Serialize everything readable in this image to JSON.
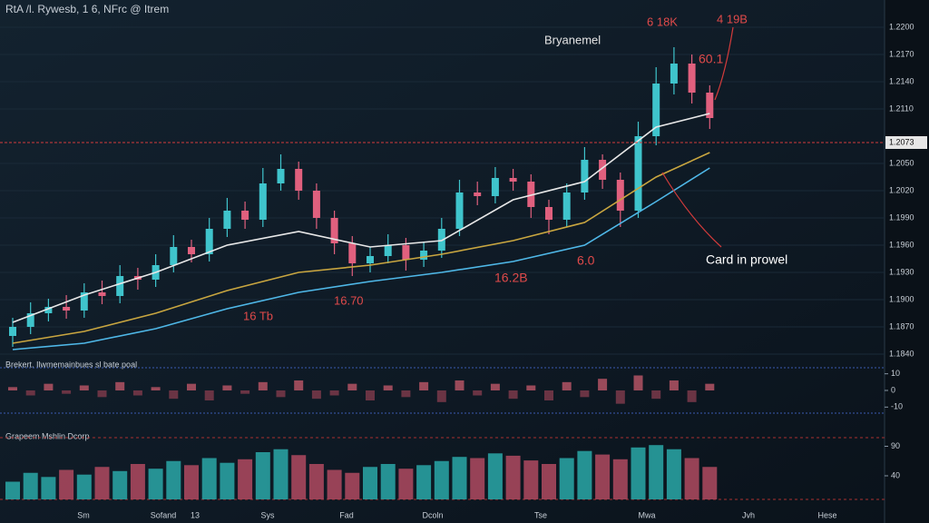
{
  "chart_data": {
    "type": "candlestick",
    "title": "RtA /l. Rywesb, 1 6, NFrc @ Itrem",
    "open": [
      1.186,
      1.187,
      1.1885,
      1.1892,
      1.1888,
      1.1908,
      1.1904,
      1.1926,
      1.1922,
      1.1938,
      1.1958,
      1.195,
      1.1978,
      1.1998,
      1.1988,
      1.2028,
      1.2044,
      1.202,
      1.199,
      1.1962,
      1.194,
      1.1948,
      1.196,
      1.1944,
      1.1954,
      1.1978,
      1.2018,
      1.2014,
      1.2034,
      1.203,
      1.2002,
      1.1988,
      1.2018,
      1.2054,
      1.2032,
      1.1998,
      1.208,
      1.2138,
      1.216,
      1.2128
    ],
    "high": [
      1.188,
      1.1897,
      1.1901,
      1.1905,
      1.1918,
      1.1921,
      1.1938,
      1.1935,
      1.195,
      1.1971,
      1.1966,
      1.199,
      1.2012,
      1.2008,
      1.2045,
      1.206,
      1.2052,
      1.2028,
      1.1998,
      1.197,
      1.1958,
      1.1972,
      1.1968,
      1.1964,
      1.199,
      1.2032,
      1.203,
      1.2046,
      1.2044,
      1.2038,
      1.201,
      1.2028,
      1.2068,
      1.206,
      1.204,
      1.2096,
      1.2156,
      1.2178,
      1.217,
      1.2136
    ],
    "low": [
      1.1848,
      1.1862,
      1.1876,
      1.1879,
      1.188,
      1.1895,
      1.1896,
      1.1911,
      1.1914,
      1.193,
      1.1941,
      1.1942,
      1.1969,
      1.1978,
      1.198,
      1.202,
      1.201,
      1.1978,
      1.195,
      1.1926,
      1.193,
      1.194,
      1.1932,
      1.1936,
      1.1946,
      1.197,
      1.2004,
      1.2006,
      1.202,
      1.199,
      1.1972,
      1.198,
      1.201,
      1.2022,
      1.198,
      1.199,
      1.207,
      1.2126,
      1.2116,
      1.2088
    ],
    "close": [
      1.187,
      1.1885,
      1.1892,
      1.1888,
      1.1908,
      1.1904,
      1.1926,
      1.1922,
      1.1938,
      1.1958,
      1.195,
      1.1978,
      1.1998,
      1.1988,
      1.2028,
      1.2044,
      1.202,
      1.199,
      1.1962,
      1.194,
      1.1948,
      1.196,
      1.1944,
      1.1954,
      1.1978,
      1.2018,
      1.2014,
      1.2034,
      1.203,
      1.2002,
      1.1988,
      1.2018,
      1.2054,
      1.2032,
      1.1998,
      1.208,
      1.2138,
      1.216,
      1.2128,
      1.21
    ],
    "up_color": "#3fc4cc",
    "down_color": "#e0607e",
    "overlays": [
      {
        "color": "#e8e8e8",
        "x": [
          0,
          4,
          8,
          12,
          16,
          20,
          24,
          28,
          32,
          36,
          39
        ],
        "values": [
          1.1875,
          1.1905,
          1.193,
          1.196,
          1.1975,
          1.1958,
          1.1965,
          1.201,
          1.203,
          1.209,
          1.2105
        ]
      },
      {
        "color": "#c9a640",
        "x": [
          0,
          4,
          8,
          12,
          16,
          20,
          24,
          28,
          32,
          36,
          39
        ],
        "values": [
          1.1852,
          1.1865,
          1.1885,
          1.191,
          1.193,
          1.1938,
          1.195,
          1.1965,
          1.1985,
          1.2035,
          1.2062
        ]
      },
      {
        "color": "#4fb8e8",
        "x": [
          0,
          4,
          8,
          12,
          16,
          20,
          24,
          28,
          32,
          36,
          39
        ],
        "values": [
          1.1845,
          1.1852,
          1.1868,
          1.189,
          1.1908,
          1.192,
          1.193,
          1.1942,
          1.196,
          1.2008,
          1.2045
        ]
      }
    ],
    "ylim": [
      1.183,
      1.221
    ],
    "yticks": [
      {
        "value": 1.22,
        "label": "1.2200"
      },
      {
        "value": 1.217,
        "label": "1.2170"
      },
      {
        "value": 1.214,
        "label": "1.2140"
      },
      {
        "value": 1.211,
        "label": "1.2110"
      },
      {
        "value": 1.205,
        "label": "1.2050"
      },
      {
        "value": 1.202,
        "label": "1.2020"
      },
      {
        "value": 1.199,
        "label": "1.1990"
      },
      {
        "value": 1.196,
        "label": "1.1960"
      },
      {
        "value": 1.193,
        "label": "1.1930"
      },
      {
        "value": 1.19,
        "label": "1.1900"
      },
      {
        "value": 1.187,
        "label": "1.1870"
      },
      {
        "value": 1.184,
        "label": "1.1840"
      }
    ],
    "grid": true,
    "price_line": {
      "value": 1.2073,
      "label": "1.2073",
      "color": "#d23b3b"
    },
    "annotations": [
      "Bryanemel",
      "6 18K",
      "4 19B",
      "60.1",
      "Card in prowel",
      "16.2B",
      "6.0",
      "16 Tb",
      "16.70"
    ],
    "oscillator": {
      "title": "Brekert. Ilwmemainbues sl bate poal",
      "ylim": [
        -12,
        12
      ],
      "yticks": [
        10,
        0,
        -10
      ],
      "values": [
        2,
        -3,
        4,
        -2,
        3,
        -4,
        5,
        -3,
        2,
        -5,
        4,
        -6,
        3,
        -2,
        5,
        -4,
        6,
        -5,
        -3,
        4,
        -6,
        3,
        -4,
        5,
        -7,
        6,
        -3,
        4,
        -5,
        3,
        -6,
        5,
        -4,
        7,
        -8,
        9,
        -5,
        6,
        -7,
        4
      ]
    },
    "volume": {
      "title": "Grapeem Mshlin Dcorp",
      "ylim": [
        0,
        100
      ],
      "yticks": [
        90,
        40
      ],
      "values": [
        30,
        45,
        38,
        50,
        42,
        55,
        48,
        60,
        52,
        65,
        58,
        70,
        62,
        68,
        80,
        85,
        75,
        60,
        50,
        45,
        55,
        60,
        52,
        58,
        65,
        72,
        70,
        78,
        74,
        66,
        60,
        70,
        82,
        76,
        68,
        88,
        92,
        85,
        70,
        55
      ]
    },
    "x_labels": [
      "Sm",
      "Sofand",
      "13",
      "Sys",
      "Fad",
      "Dcoln",
      "Tse",
      "Mwa",
      "Jvh",
      "Hese"
    ]
  }
}
